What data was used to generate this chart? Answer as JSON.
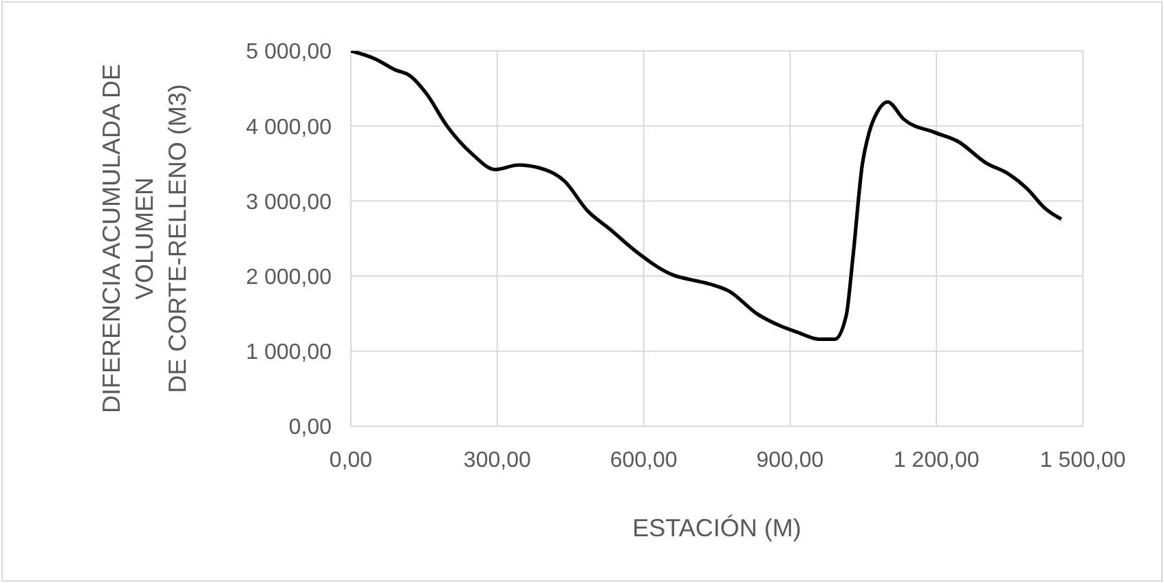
{
  "chart_data": {
    "type": "line",
    "xlabel": "ESTACIÓN (M)",
    "ylabel": "DIFERENCIA ACUMULADA DE VOLUMEN\nDE CORTE-RELLENO (M3)",
    "xlim": [
      0,
      1500
    ],
    "ylim": [
      0,
      5000
    ],
    "xticks": [
      {
        "value": 0,
        "label": "0,00"
      },
      {
        "value": 300,
        "label": "300,00"
      },
      {
        "value": 600,
        "label": "600,00"
      },
      {
        "value": 900,
        "label": "900,00"
      },
      {
        "value": 1200,
        "label": "1 200,00"
      },
      {
        "value": 1500,
        "label": "1 500,00"
      }
    ],
    "yticks": [
      {
        "value": 0,
        "label": "0,00"
      },
      {
        "value": 1000,
        "label": "1 000,00"
      },
      {
        "value": 2000,
        "label": "2 000,00"
      },
      {
        "value": 3000,
        "label": "3 000,00"
      },
      {
        "value": 4000,
        "label": "4 000,00"
      },
      {
        "value": 5000,
        "label": "5 000,00"
      }
    ],
    "grid": true,
    "marker": "none",
    "line_style": "solid",
    "series": [
      {
        "color": "#000000",
        "x": [
          0,
          51,
          90,
          121,
          155,
          197,
          248,
          296,
          344,
          409,
          437,
          485,
          530,
          586,
          662,
          691,
          738,
          775,
          832,
          879,
          916,
          959,
          992,
          1015,
          1029,
          1048,
          1062,
          1081,
          1100,
          1133,
          1198,
          1245,
          1301,
          1348,
          1385,
          1423,
          1456
        ],
        "values": [
          5000,
          4890,
          4750,
          4670,
          4430,
          4000,
          3630,
          3420,
          3480,
          3390,
          3270,
          2870,
          2630,
          2320,
          2010,
          1960,
          1890,
          1800,
          1500,
          1340,
          1250,
          1160,
          1160,
          1470,
          2260,
          3480,
          3910,
          4210,
          4320,
          4090,
          3910,
          3790,
          3510,
          3360,
          3170,
          2900,
          2760
        ]
      }
    ]
  }
}
